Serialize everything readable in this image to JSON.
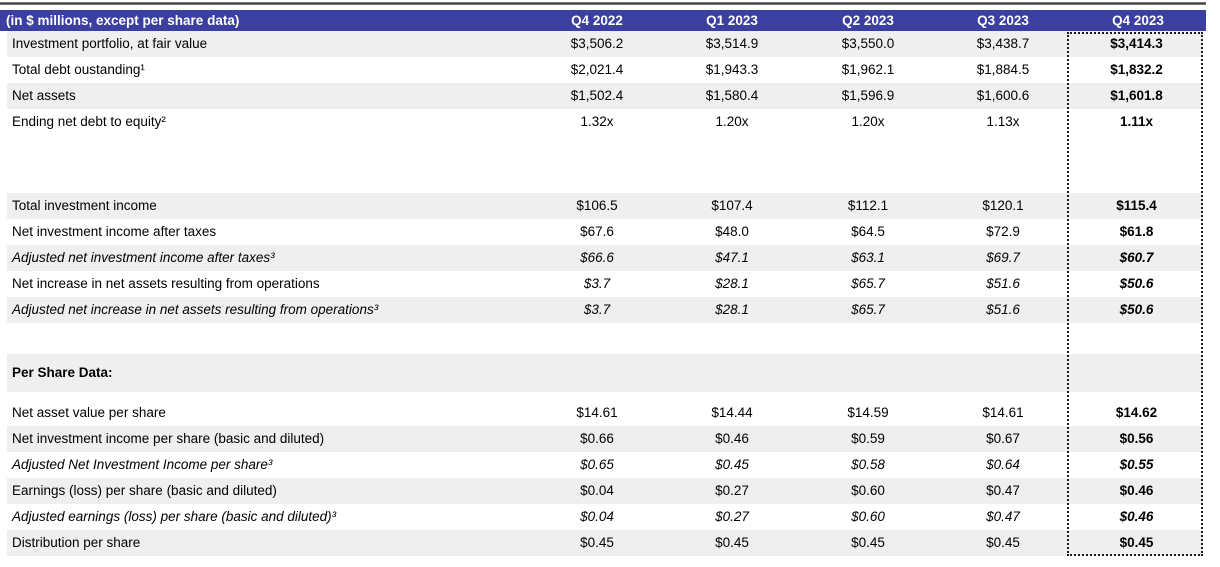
{
  "colors": {
    "header_bg": "#3B3FA2",
    "stripe": "#EFEFEF",
    "header_text": "#FFFFFF",
    "highlight_border": "#1B1B1B"
  },
  "chart_data": {
    "type": "table",
    "units_label": "(in $ millions, except per share data)",
    "columns": [
      "Q4 2022",
      "Q1 2023",
      "Q2 2023",
      "Q3 2023",
      "Q4 2023"
    ],
    "highlighted_column": "Q4 2023",
    "balance_rows": [
      {
        "label": "Investment portfolio, at fair value",
        "values": [
          "$3,506.2",
          "$3,514.9",
          "$3,550.0",
          "$3,438.7",
          "$3,414.3"
        ]
      },
      {
        "label": "Total debt oustanding¹",
        "values": [
          "$2,021.4",
          "$1,943.3",
          "$1,962.1",
          "$1,884.5",
          "$1,832.2"
        ]
      },
      {
        "label": "Net assets",
        "values": [
          "$1,502.4",
          "$1,580.4",
          "$1,596.9",
          "$1,600.6",
          "$1,601.8"
        ]
      },
      {
        "label": "Ending net debt to equity²",
        "values": [
          "1.32x",
          "1.20x",
          "1.20x",
          "1.13x",
          "1.11x"
        ]
      }
    ],
    "income_rows": [
      {
        "label": "Total investment income",
        "values": [
          "$106.5",
          "$107.4",
          "$112.1",
          "$120.1",
          "$115.4"
        ]
      },
      {
        "label": "Net investment income after taxes",
        "values": [
          "$67.6",
          "$48.0",
          "$64.5",
          "$72.9",
          "$61.8"
        ]
      },
      {
        "label": "Adjusted net investment income after taxes³",
        "values": [
          "$66.6",
          "$47.1",
          "$63.1",
          "$69.7",
          "$60.7"
        ]
      },
      {
        "label": "Net increase in net assets resulting from operations",
        "values": [
          "$3.7",
          "$28.1",
          "$65.7",
          "$51.6",
          "$50.6"
        ]
      },
      {
        "label": "Adjusted net increase in net assets resulting from operations³",
        "values": [
          "$3.7",
          "$28.1",
          "$65.7",
          "$51.6",
          "$50.6"
        ]
      }
    ],
    "per_share_header": "Per Share Data:",
    "per_share_rows": [
      {
        "label": "Net asset value per share",
        "values": [
          "$14.61",
          "$14.44",
          "$14.59",
          "$14.61",
          "$14.62"
        ]
      },
      {
        "label": "Net investment income per share (basic and diluted)",
        "values": [
          "$0.66",
          "$0.46",
          "$0.59",
          "$0.67",
          "$0.56"
        ]
      },
      {
        "label": "Adjusted Net Investment Income per share³",
        "values": [
          "$0.65",
          "$0.45",
          "$0.58",
          "$0.64",
          "$0.55"
        ]
      },
      {
        "label": "Earnings (loss) per share (basic and diluted)",
        "values": [
          "$0.04",
          "$0.27",
          "$0.60",
          "$0.47",
          "$0.46"
        ]
      },
      {
        "label": "Adjusted earnings (loss) per share (basic and diluted)³",
        "values": [
          "$0.04",
          "$0.27",
          "$0.60",
          "$0.47",
          "$0.46"
        ]
      },
      {
        "label": "Distribution per share",
        "values": [
          "$0.45",
          "$0.45",
          "$0.45",
          "$0.45",
          "$0.45"
        ]
      }
    ]
  }
}
